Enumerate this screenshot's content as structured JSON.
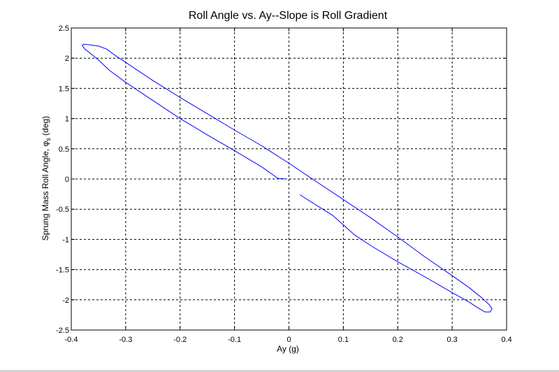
{
  "chart_data": {
    "type": "line",
    "title": "Roll Angle vs. Ay--Slope is Roll Gradient",
    "xlabel": "Ay (g)",
    "ylabel": "Sprung Mass Roll Angle, ",
    "ylabel_symbol": "φ",
    "ylabel_subscript": "s",
    "ylabel_unit": " (deg)",
    "xlim": [
      -0.4,
      0.4
    ],
    "ylim": [
      -2.5,
      2.5
    ],
    "xticks": [
      -0.4,
      -0.3,
      -0.2,
      -0.1,
      0,
      0.1,
      0.2,
      0.3,
      0.4
    ],
    "yticks": [
      -2.5,
      -2,
      -1.5,
      -1,
      -0.5,
      0,
      0.5,
      1,
      1.5,
      2,
      2.5
    ],
    "xtick_labels": [
      "-0.4",
      "-0.3",
      "-0.2",
      "-0.1",
      "0",
      "0.1",
      "0.2",
      "0.3",
      "0.4"
    ],
    "ytick_labels": [
      "-2.5",
      "-2",
      "-1.5",
      "-1",
      "-0.5",
      "0",
      "0.5",
      "1",
      "1.5",
      "2",
      "2.5"
    ],
    "grid": true,
    "line_color": "#0000ff",
    "series": [
      {
        "x": [
          -0.005,
          -0.02,
          -0.05,
          -0.1,
          -0.15,
          -0.2,
          -0.25,
          -0.3,
          -0.33,
          -0.35,
          -0.365,
          -0.375,
          -0.38,
          -0.377,
          -0.365,
          -0.35,
          -0.335,
          -0.32,
          -0.3,
          -0.25,
          -0.2,
          -0.15,
          -0.1,
          -0.05,
          0,
          0.05,
          0.1,
          0.15,
          0.2,
          0.25,
          0.3,
          0.33,
          0.355,
          0.368,
          0.373,
          0.37,
          0.36,
          0.345,
          0.33,
          0.3,
          0.25,
          0.2,
          0.15,
          0.12,
          0.08,
          0.05,
          0.02
        ],
        "y": [
          0,
          0.01,
          0.2,
          0.47,
          0.73,
          1.0,
          1.3,
          1.6,
          1.8,
          1.97,
          2.08,
          2.15,
          2.21,
          2.23,
          2.22,
          2.2,
          2.15,
          2.05,
          1.93,
          1.63,
          1.35,
          1.08,
          0.81,
          0.55,
          0.26,
          -0.04,
          -0.34,
          -0.64,
          -0.96,
          -1.29,
          -1.6,
          -1.79,
          -1.97,
          -2.08,
          -2.15,
          -2.2,
          -2.2,
          -2.12,
          -2.03,
          -1.88,
          -1.62,
          -1.37,
          -1.1,
          -0.92,
          -0.6,
          -0.43,
          -0.26
        ]
      }
    ]
  }
}
